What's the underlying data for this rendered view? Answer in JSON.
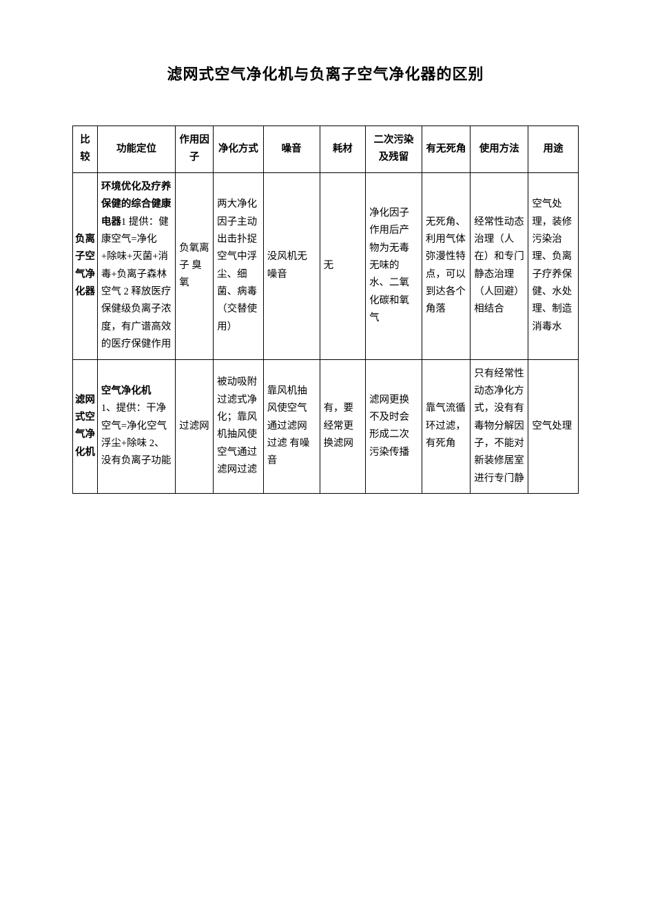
{
  "title": "滤网式空气净化机与负离子空气净化器的区别",
  "table": {
    "border_color": "#000000",
    "background_color": "#ffffff",
    "text_color": "#000000",
    "font_size": 14.5,
    "title_font_size": 22,
    "line_height": 1.75,
    "column_widths_pct": [
      4.7,
      14.8,
      7.2,
      9.5,
      10.7,
      8.7,
      10.7,
      9.2,
      11.0,
      9.5
    ],
    "columns": [
      "比较",
      "功能定位",
      "作用因子",
      "净化方式",
      "噪音",
      "耗材",
      "二次污染及残留",
      "有无死角",
      "使用方法",
      "用途"
    ],
    "rows": [
      {
        "label": "负离子空气净化器",
        "func_strong": "环境优化及疗养保健的综合健康电器",
        "func_rest": "1 提供：健康空气=净化+除味+灭菌+消毒+负离子森林空气 2 释放医疗保健级负离子浓度，有广谱高效的医疗保健作用",
        "factor": "负氧离子 臭氧",
        "method": "两大净化因子主动出击扑捉空气中浮尘、细菌、病毒（交替使用）",
        "noise": "没风机无噪音",
        "material": "无",
        "pollution": "净化因子作用后产物为无毒无味的水、二氧化碳和氧气",
        "dead_corner": "无死角、利用气体弥漫性特点，可以到达各个角落",
        "usage": "经常性动态治理（人在）和专门静态治理（人回避）相结合",
        "purpose": "空气处理，装修污染治理、负离子疗养保健、水处理、制造消毒水"
      },
      {
        "label": "滤网式空气净化机",
        "func_strong": "空气净化机",
        "func_rest": "1、提供：干净空气=净化空气浮尘+除味 2、没有负离子功能",
        "factor": "过滤网",
        "method": "被动吸附过滤式净化；靠风机抽风使空气通过滤网过滤",
        "noise": "靠风机抽风使空气通过滤网过滤 有噪音",
        "material": "有，要经常更换滤网",
        "pollution": "滤网更换不及时会形成二次污染传播",
        "dead_corner": "靠气流循环过滤，有死角",
        "usage": "只有经常性动态净化方式，没有有毒物分解因子，不能对新装修居室进行专门静",
        "purpose": "空气处理"
      }
    ]
  }
}
